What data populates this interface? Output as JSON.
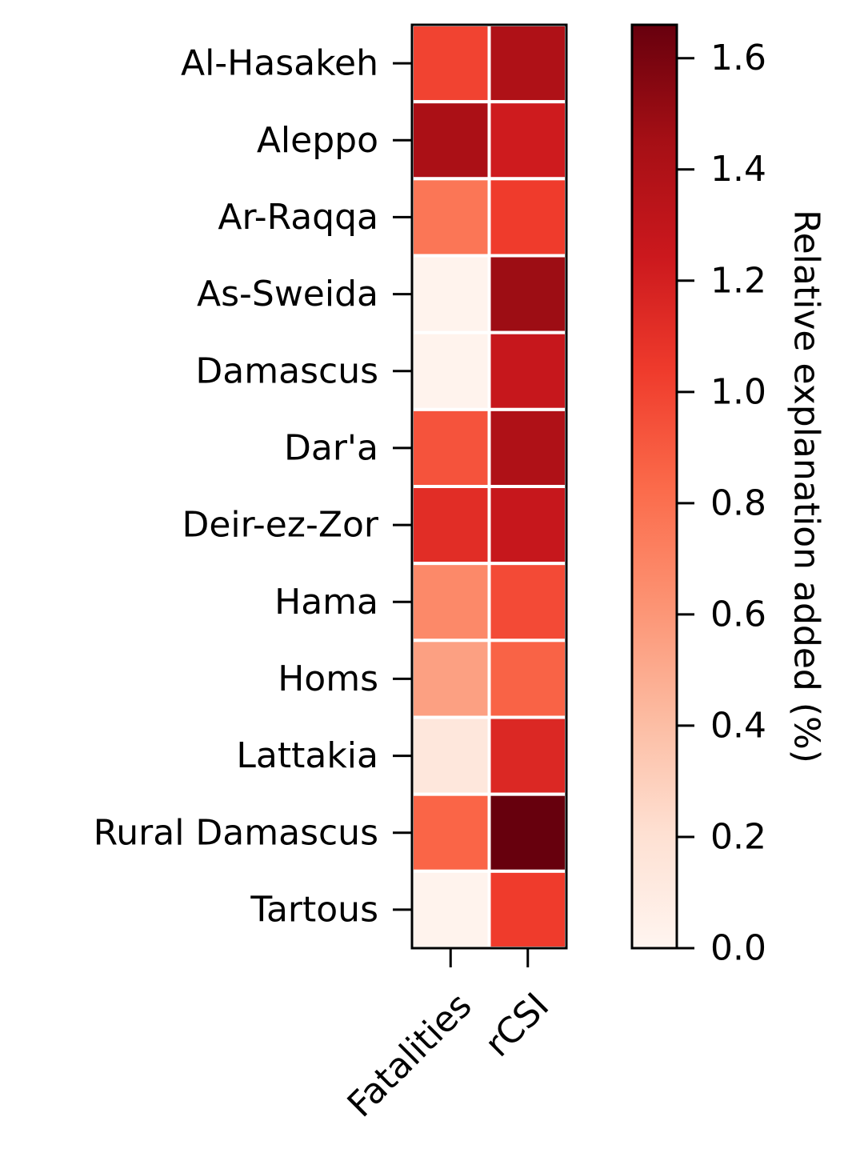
{
  "chart_data": {
    "type": "heatmap",
    "title": "",
    "rows": [
      "Al-Hasakeh",
      "Aleppo",
      "Ar-Raqqa",
      "As-Sweida",
      "Damascus",
      "Dar'a",
      "Deir-ez-Zor",
      "Hama",
      "Homs",
      "Lattakia",
      "Rural Damascus",
      "Tartous"
    ],
    "columns": [
      "Fatalities",
      "rCSI"
    ],
    "values": [
      [
        1.0,
        1.4
      ],
      [
        1.42,
        1.23
      ],
      [
        0.77,
        1.04
      ],
      [
        0.02,
        1.48
      ],
      [
        0.02,
        1.27
      ],
      [
        0.93,
        1.4
      ],
      [
        1.12,
        1.27
      ],
      [
        0.67,
        0.97
      ],
      [
        0.55,
        0.86
      ],
      [
        0.14,
        1.15
      ],
      [
        0.85,
        1.66
      ],
      [
        0.02,
        1.04
      ]
    ],
    "colorbar": {
      "label": "Relative explanation added (%)",
      "range": [
        0.0,
        1.66
      ],
      "ticks": [
        0.0,
        0.2,
        0.4,
        0.6,
        0.8,
        1.0,
        1.2,
        1.4,
        1.6
      ],
      "tick_labels": [
        "0.0",
        "0.2",
        "0.4",
        "0.6",
        "0.8",
        "1.0",
        "1.2",
        "1.4",
        "1.6"
      ],
      "colormap": "Reds",
      "stops": [
        "#fff5f0",
        "#fee0d2",
        "#fcbba1",
        "#fc9272",
        "#fb6a4a",
        "#ef3b2c",
        "#cb181d",
        "#a50f15",
        "#67000d"
      ]
    }
  }
}
